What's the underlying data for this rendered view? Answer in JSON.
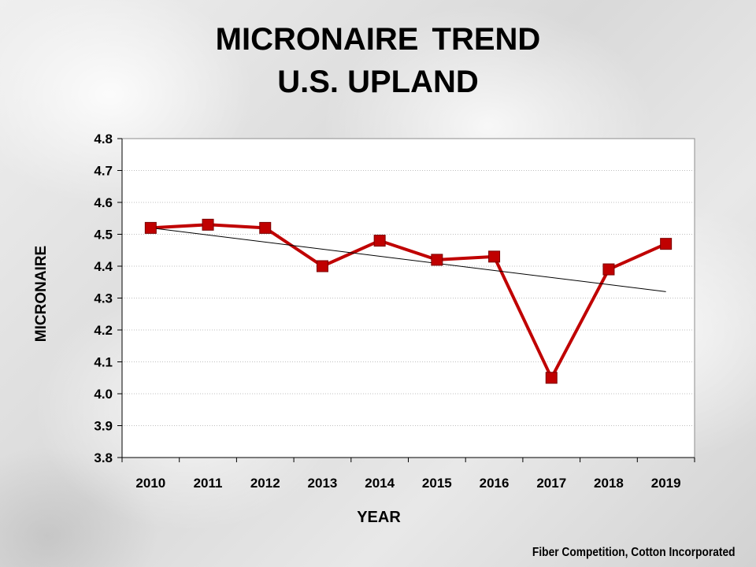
{
  "title": {
    "line1": "MICRONAIRE TREND",
    "line2": "U.S. UPLAND"
  },
  "credit": "Fiber Competition, Cotton Incorporated",
  "colors": {
    "series": "#c00000",
    "trendline": "#000000",
    "grid": "#bfbfbf",
    "plot_background": "#ffffff"
  },
  "chart_data": {
    "type": "line",
    "title": "MICRONAIRE TREND U.S. UPLAND",
    "xlabel": "YEAR",
    "ylabel": "MICRONAIRE",
    "categories": [
      "2010",
      "2011",
      "2012",
      "2013",
      "2014",
      "2015",
      "2016",
      "2017",
      "2018",
      "2019"
    ],
    "series": [
      {
        "values": [
          4.52,
          4.53,
          4.52,
          4.4,
          4.48,
          4.42,
          4.43,
          4.05,
          4.39,
          4.47
        ],
        "marker": "square"
      }
    ],
    "trendline": {
      "type": "linear",
      "start": 4.52,
      "end": 4.32
    },
    "ylim": [
      3.8,
      4.8
    ],
    "yticks": [
      "3.8",
      "3.9",
      "4.0",
      "4.1",
      "4.2",
      "4.3",
      "4.4",
      "4.5",
      "4.6",
      "4.7",
      "4.8"
    ],
    "grid": "horizontal dotted",
    "legend": "none"
  }
}
